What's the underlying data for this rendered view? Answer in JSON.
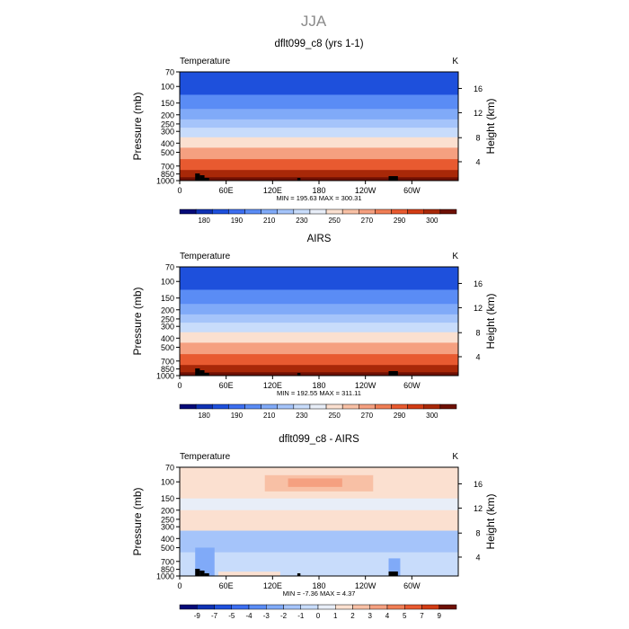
{
  "figure": {
    "title": "JJA"
  },
  "chart_data": [
    {
      "type": "heatmap",
      "title": "dflt099_c8 (yrs 1-1)",
      "left_label": "Temperature",
      "right_label": "K",
      "ylabel": "Pressure (mb)",
      "ylabel_right": "Height (km)",
      "x_ticks": [
        "0",
        "60E",
        "120E",
        "180",
        "120W",
        "60W"
      ],
      "y_ticks": [
        "70",
        "100",
        "150",
        "200",
        "250",
        "300",
        "400",
        "500",
        "700",
        "850",
        "1000"
      ],
      "y_ticks_right": [
        "16",
        "12",
        "8",
        "4"
      ],
      "stats": "MIN = 195.63   MAX = 300.31",
      "colorbar": {
        "labels": [
          "180",
          "190",
          "210",
          "230",
          "250",
          "270",
          "290",
          "300"
        ],
        "colors": [
          "#050a78",
          "#0f32b4",
          "#1e50dc",
          "#3c6ef0",
          "#5a8cf5",
          "#80aaf8",
          "#a5c4fa",
          "#c8dcfb",
          "#e8eef8",
          "#fbe0d0",
          "#f8c0a5",
          "#f5a080",
          "#f07e55",
          "#e85a30",
          "#d23c14",
          "#a82808",
          "#6e1004"
        ]
      },
      "profile_levels": [
        {
          "pressure": 70,
          "level": 2
        },
        {
          "pressure": 100,
          "level": 2
        },
        {
          "pressure": 150,
          "level": 4
        },
        {
          "pressure": 200,
          "level": 5
        },
        {
          "pressure": 250,
          "level": 6
        },
        {
          "pressure": 300,
          "level": 7
        },
        {
          "pressure": 400,
          "level": 9
        },
        {
          "pressure": 500,
          "level": 11
        },
        {
          "pressure": 700,
          "level": 13
        },
        {
          "pressure": 850,
          "level": 15
        },
        {
          "pressure": 1000,
          "level": 16
        }
      ]
    },
    {
      "type": "heatmap",
      "title": "AIRS",
      "left_label": "Temperature",
      "right_label": "K",
      "ylabel": "Pressure (mb)",
      "ylabel_right": "Height (km)",
      "x_ticks": [
        "0",
        "60E",
        "120E",
        "180",
        "120W",
        "60W"
      ],
      "y_ticks": [
        "70",
        "100",
        "150",
        "200",
        "250",
        "300",
        "400",
        "500",
        "700",
        "850",
        "1000"
      ],
      "y_ticks_right": [
        "16",
        "12",
        "8",
        "4"
      ],
      "stats": "MIN = 192.55   MAX = 311.11",
      "colorbar": {
        "labels": [
          "180",
          "190",
          "210",
          "230",
          "250",
          "270",
          "290",
          "300"
        ],
        "colors": [
          "#050a78",
          "#0f32b4",
          "#1e50dc",
          "#3c6ef0",
          "#5a8cf5",
          "#80aaf8",
          "#a5c4fa",
          "#c8dcfb",
          "#e8eef8",
          "#fbe0d0",
          "#f8c0a5",
          "#f5a080",
          "#f07e55",
          "#e85a30",
          "#d23c14",
          "#a82808",
          "#6e1004"
        ]
      },
      "profile_levels": [
        {
          "pressure": 70,
          "level": 2
        },
        {
          "pressure": 100,
          "level": 2
        },
        {
          "pressure": 150,
          "level": 4
        },
        {
          "pressure": 200,
          "level": 5
        },
        {
          "pressure": 250,
          "level": 6
        },
        {
          "pressure": 300,
          "level": 7
        },
        {
          "pressure": 400,
          "level": 9
        },
        {
          "pressure": 500,
          "level": 11
        },
        {
          "pressure": 700,
          "level": 13
        },
        {
          "pressure": 850,
          "level": 15
        },
        {
          "pressure": 1000,
          "level": 16
        }
      ]
    },
    {
      "type": "heatmap",
      "title": "dflt099_c8 - AIRS",
      "left_label": "Temperature",
      "right_label": "K",
      "ylabel": "Pressure (mb)",
      "ylabel_right": "Height (km)",
      "x_ticks": [
        "0",
        "60E",
        "120E",
        "180",
        "120W",
        "60W"
      ],
      "y_ticks": [
        "70",
        "100",
        "150",
        "200",
        "250",
        "300",
        "400",
        "500",
        "700",
        "850",
        "1000"
      ],
      "y_ticks_right": [
        "16",
        "12",
        "8",
        "4"
      ],
      "stats": "MIN =   -7.36   MAX =     4.37",
      "colorbar": {
        "labels": [
          "-9",
          "-7",
          "-5",
          "-4",
          "-3",
          "-2",
          "-1",
          "0",
          "1",
          "2",
          "3",
          "4",
          "5",
          "7",
          "9"
        ],
        "colors": [
          "#050a78",
          "#0f32b4",
          "#1e50dc",
          "#3c6ef0",
          "#5a8cf5",
          "#80aaf8",
          "#a5c4fa",
          "#c8dcfb",
          "#e8eef8",
          "#fbe0d0",
          "#f8c0a5",
          "#f5a080",
          "#f07e55",
          "#e85a30",
          "#d23c14",
          "#6e1004"
        ]
      },
      "anomaly_regions": [
        {
          "lon_range": [
            0,
            360
          ],
          "p_range": [
            70,
            150
          ],
          "level": 9
        },
        {
          "lon_range": [
            110,
            250
          ],
          "p_range": [
            85,
            125
          ],
          "level": 10
        },
        {
          "lon_range": [
            140,
            210
          ],
          "p_range": [
            92,
            112
          ],
          "level": 11
        },
        {
          "lon_range": [
            0,
            360
          ],
          "p_range": [
            150,
            200
          ],
          "level": 8
        },
        {
          "lon_range": [
            0,
            360
          ],
          "p_range": [
            200,
            330
          ],
          "level": 9
        },
        {
          "lon_range": [
            0,
            360
          ],
          "p_range": [
            330,
            560
          ],
          "level": 6
        },
        {
          "lon_range": [
            0,
            360
          ],
          "p_range": [
            560,
            1000
          ],
          "level": 7
        },
        {
          "lon_range": [
            20,
            45
          ],
          "p_range": [
            500,
            1000
          ],
          "level": 5
        },
        {
          "lon_range": [
            270,
            285
          ],
          "p_range": [
            650,
            1000
          ],
          "level": 5
        },
        {
          "lon_range": [
            50,
            130
          ],
          "p_range": [
            900,
            1000
          ],
          "level": 9
        }
      ]
    }
  ]
}
